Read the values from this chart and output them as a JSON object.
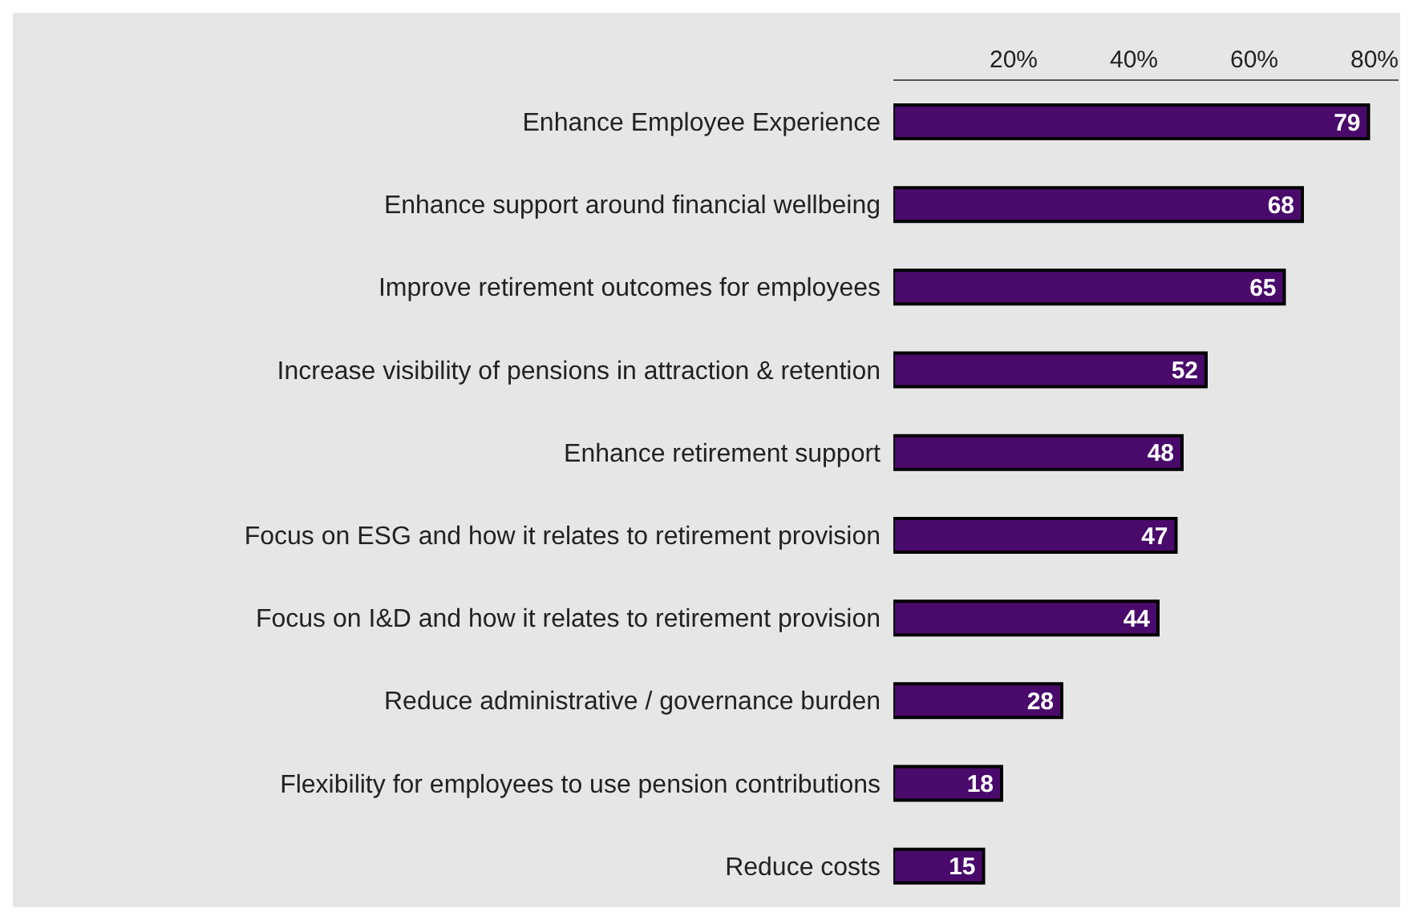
{
  "chart_data": {
    "type": "bar",
    "orientation": "horizontal",
    "categories": [
      "Enhance Employee Experience",
      "Enhance support around financial wellbeing",
      "Improve retirement outcomes for employees",
      "Increase visibility of pensions in attraction & retention",
      "Enhance retirement support",
      "Focus on ESG and how it relates to retirement provision",
      "Focus on I&D and how it relates to retirement provision",
      "Reduce administrative / governance burden",
      "Flexibility for employees to use pension contributions",
      "Reduce costs"
    ],
    "values": [
      79,
      68,
      65,
      52,
      48,
      47,
      44,
      28,
      18,
      15
    ],
    "color": "#4a0a6b",
    "xlim": [
      0,
      84
    ],
    "xticks": [
      {
        "value": 20,
        "label": "20%"
      },
      {
        "value": 40,
        "label": "40%"
      },
      {
        "value": 60,
        "label": "60%"
      },
      {
        "value": 80,
        "label": "80%"
      }
    ],
    "data_labels": true,
    "grid": false
  }
}
